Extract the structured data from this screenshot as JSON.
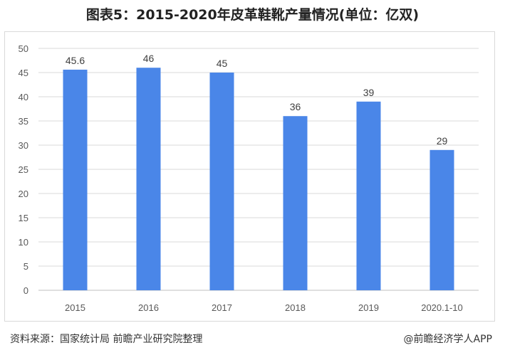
{
  "title": "图表5：2015-2020年皮革鞋靴产量情况(单位：亿双)",
  "footer": {
    "source": "资料来源：国家统计局 前瞻产业研究院整理",
    "brand": "@前瞻经济学人APP"
  },
  "chart_data": {
    "type": "bar",
    "categories": [
      "2015",
      "2016",
      "2017",
      "2018",
      "2019",
      "2020.1-10"
    ],
    "values": [
      45.6,
      46,
      45,
      36,
      39,
      29
    ],
    "value_labels": [
      "45.6",
      "46",
      "45",
      "36",
      "39",
      "29"
    ],
    "ylim": [
      0,
      50
    ],
    "yticks": [
      "0",
      "5",
      "10",
      "15",
      "20",
      "25",
      "30",
      "35",
      "40",
      "45",
      "50"
    ],
    "grid": true,
    "legend": "none",
    "bar_color": "#4a86e8",
    "grid_color": "#d9d9d9"
  }
}
